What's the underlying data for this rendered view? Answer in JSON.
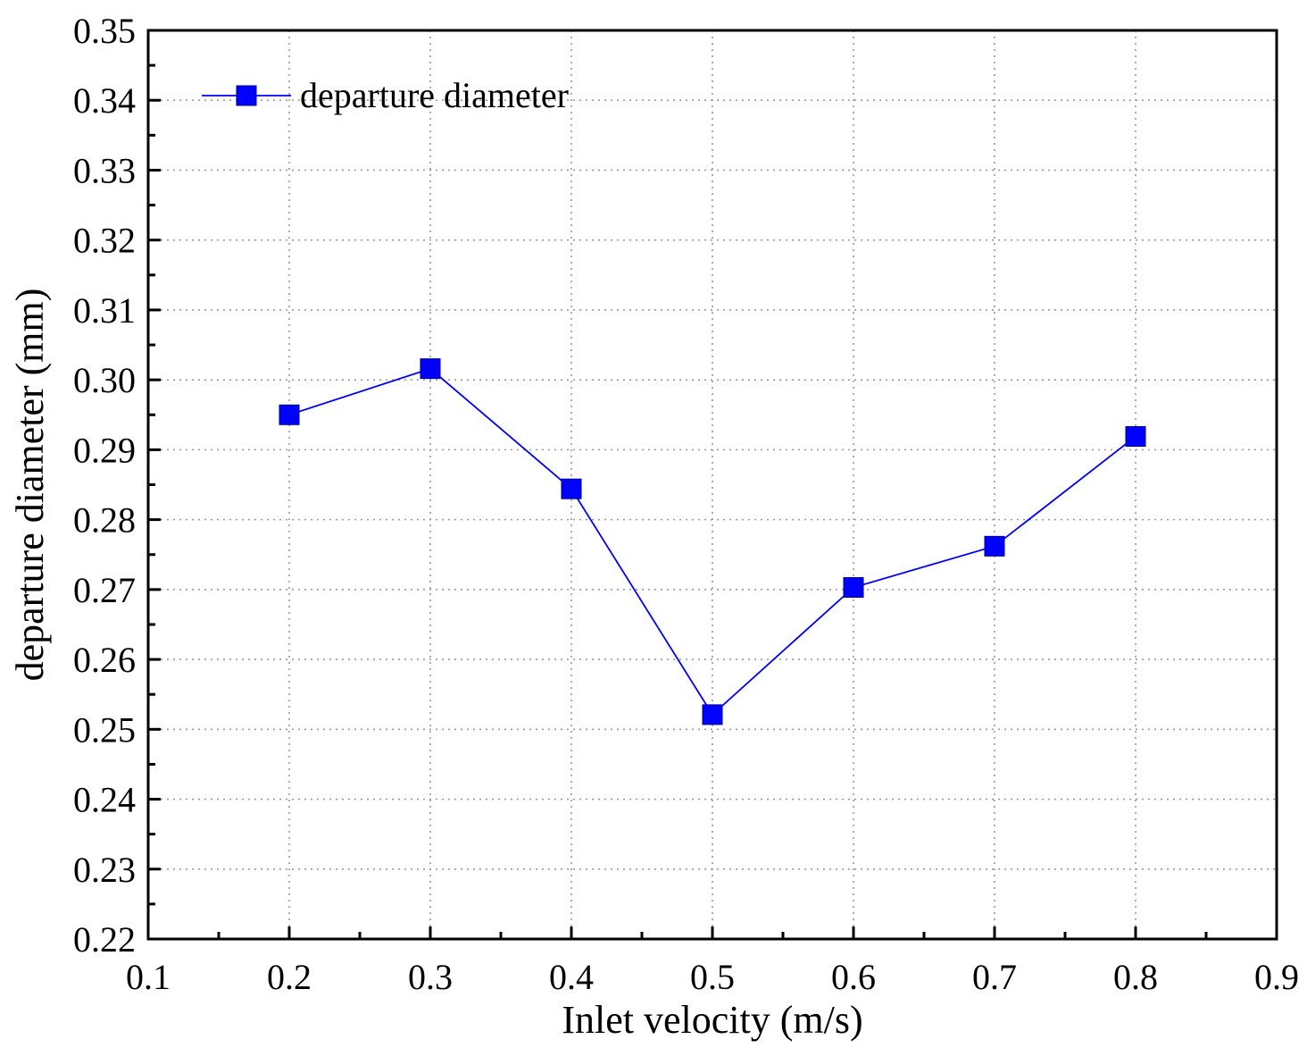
{
  "chart_data": {
    "type": "line",
    "title": "",
    "xlabel": "Inlet velocity (m/s)",
    "ylabel": "departure diameter (mm)",
    "xlim": [
      0.1,
      0.9
    ],
    "ylim": [
      0.22,
      0.35
    ],
    "x_ticks": [
      "0.1",
      "0.2",
      "0.3",
      "0.4",
      "0.5",
      "0.6",
      "0.7",
      "0.8",
      "0.9"
    ],
    "y_ticks": [
      "0.22",
      "0.23",
      "0.24",
      "0.25",
      "0.26",
      "0.27",
      "0.28",
      "0.29",
      "0.30",
      "0.31",
      "0.32",
      "0.33",
      "0.34",
      "0.35"
    ],
    "grid": true,
    "legend_position": "top-left",
    "series": [
      {
        "name": "departure diameter",
        "color": "#0000ff",
        "marker": "square",
        "x": [
          0.2,
          0.3,
          0.4,
          0.5,
          0.6,
          0.7,
          0.8
        ],
        "y": [
          0.295,
          0.3016,
          0.2844,
          0.2521,
          0.2703,
          0.2762,
          0.2919
        ]
      }
    ]
  }
}
